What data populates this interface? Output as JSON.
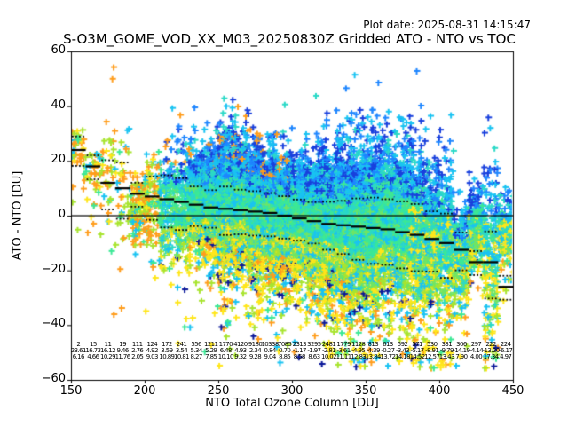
{
  "header": {
    "plot_date": "Plot date: 2025-08-31 14:15:47",
    "title": "S-O3M_GOME_VOD_XX_M03_20250830Z Gridded ATO - NTO vs TOC"
  },
  "chart_data": {
    "type": "scatter",
    "title": "S-O3M_GOME_VOD_XX_M03_20250830Z Gridded ATO - NTO vs TOC",
    "xlabel": "NTO Total Ozone Column [DU]",
    "ylabel": "ATO - NTO [DU]",
    "xlim": [
      150,
      450
    ],
    "ylim": [
      -60,
      60
    ],
    "grid": false,
    "legend": "none",
    "marker": "plus",
    "zero_line": 0,
    "xticks": [
      {
        "v": 150,
        "label": "150"
      },
      {
        "v": 200,
        "label": "200"
      },
      {
        "v": 250,
        "label": "250"
      },
      {
        "v": 300,
        "label": "300"
      },
      {
        "v": 350,
        "label": "350"
      },
      {
        "v": 400,
        "label": "400"
      },
      {
        "v": 450,
        "label": "450"
      }
    ],
    "yticks": [
      {
        "v": 60,
        "label": "60"
      },
      {
        "v": 40,
        "label": "40"
      },
      {
        "v": 20,
        "label": "20"
      },
      {
        "v": 0,
        "label": "0"
      },
      {
        "v": -20,
        "label": "−20"
      },
      {
        "v": -40,
        "label": "−40"
      },
      {
        "v": -60,
        "label": "−60"
      }
    ],
    "palette": {
      "orange": "#ff9d1c",
      "yellow": "#ffe61a",
      "chartreuse": "#a8e42f",
      "lightgreen": "#70e564",
      "springgreen": "#3ce896",
      "turquoise": "#2bd9c7",
      "cyan": "#19c3f2",
      "dodger": "#1e86ff",
      "blue": "#1940dd",
      "navy": "#0b1899"
    },
    "overlay_colors": {
      "median_line": "#000000",
      "percentile_dots": "#000000",
      "zero_line": "#000000"
    },
    "bins": [
      {
        "toc": 155,
        "count": 2,
        "mean": 23.61,
        "std": 6.16,
        "median": 24
      },
      {
        "toc": 165,
        "count": 15,
        "mean": 16.73,
        "std": 4.66,
        "median": 18
      },
      {
        "toc": 175,
        "count": 11,
        "mean": 16.12,
        "std": 10.29,
        "median": 12
      },
      {
        "toc": 185,
        "count": 19,
        "mean": 9.46,
        "std": 11.76,
        "median": 10
      },
      {
        "toc": 195,
        "count": 111,
        "mean": 2.76,
        "std": 2.05,
        "median": 8
      },
      {
        "toc": 205,
        "count": 124,
        "mean": 4.92,
        "std": 9.03,
        "median": 7
      },
      {
        "toc": 215,
        "count": 172,
        "mean": 3.59,
        "std": 10.89,
        "median": 6
      },
      {
        "toc": 225,
        "count": 241,
        "mean": 3.54,
        "std": 10.81,
        "median": 5
      },
      {
        "toc": 235,
        "count": 556,
        "mean": 5.34,
        "std": 8.27,
        "median": 4
      },
      {
        "toc": 245,
        "count": 1211,
        "mean": 5.29,
        "std": 7.85,
        "median": 3
      },
      {
        "toc": 255,
        "count": 1770,
        "mean": 6.48,
        "std": 10.1,
        "median": 2.5
      },
      {
        "toc": 265,
        "count": 4120,
        "mean": 4.93,
        "std": 9.32,
        "median": 2
      },
      {
        "toc": 275,
        "count": 9180,
        "mean": 2.34,
        "std": 9.28,
        "median": 1.5
      },
      {
        "toc": 285,
        "count": 10338,
        "mean": 0.84,
        "std": 9.04,
        "median": 1
      },
      {
        "toc": 295,
        "count": 7085,
        "mean": 0.7,
        "std": 8.85,
        "median": 0
      },
      {
        "toc": 305,
        "count": 2313,
        "mean": -1.17,
        "std": 8.58,
        "median": -1
      },
      {
        "toc": 315,
        "count": 3295,
        "mean": -1.97,
        "std": 8.63,
        "median": -2
      },
      {
        "toc": 325,
        "count": 2481,
        "mean": -2.81,
        "std": 10.02,
        "median": -3
      },
      {
        "toc": 335,
        "count": 1779,
        "mean": -3.61,
        "std": 11.11,
        "median": -3.5
      },
      {
        "toc": 345,
        "count": 1128,
        "mean": -4.95,
        "std": 12.83,
        "median": -4
      },
      {
        "toc": 355,
        "count": 813,
        "mean": -4.39,
        "std": 13.84,
        "median": -4.5
      },
      {
        "toc": 365,
        "count": 613,
        "mean": -0.27,
        "std": 13.72,
        "median": -5
      },
      {
        "toc": 375,
        "count": 592,
        "mean": -3.43,
        "std": 14.18,
        "median": -6
      },
      {
        "toc": 385,
        "count": 571,
        "mean": -5.17,
        "std": 14.52,
        "median": -7
      },
      {
        "toc": 395,
        "count": 530,
        "mean": -8.91,
        "std": 12.57,
        "median": -8.5
      },
      {
        "toc": 405,
        "count": 331,
        "mean": -9.79,
        "std": 13.43,
        "median": -10
      },
      {
        "toc": 415,
        "count": 306,
        "mean": -14.19,
        "std": 7.9,
        "median": -12.5
      },
      {
        "toc": 425,
        "count": 297,
        "mean": -4.14,
        "std": 4.0,
        "median": -17
      },
      {
        "toc": 435,
        "count": 222,
        "mean": -13.2,
        "std": 17.34,
        "median": -17
      },
      {
        "toc": 445,
        "count": 224,
        "mean": -6.17,
        "std": 4.97,
        "median": -26
      }
    ]
  }
}
